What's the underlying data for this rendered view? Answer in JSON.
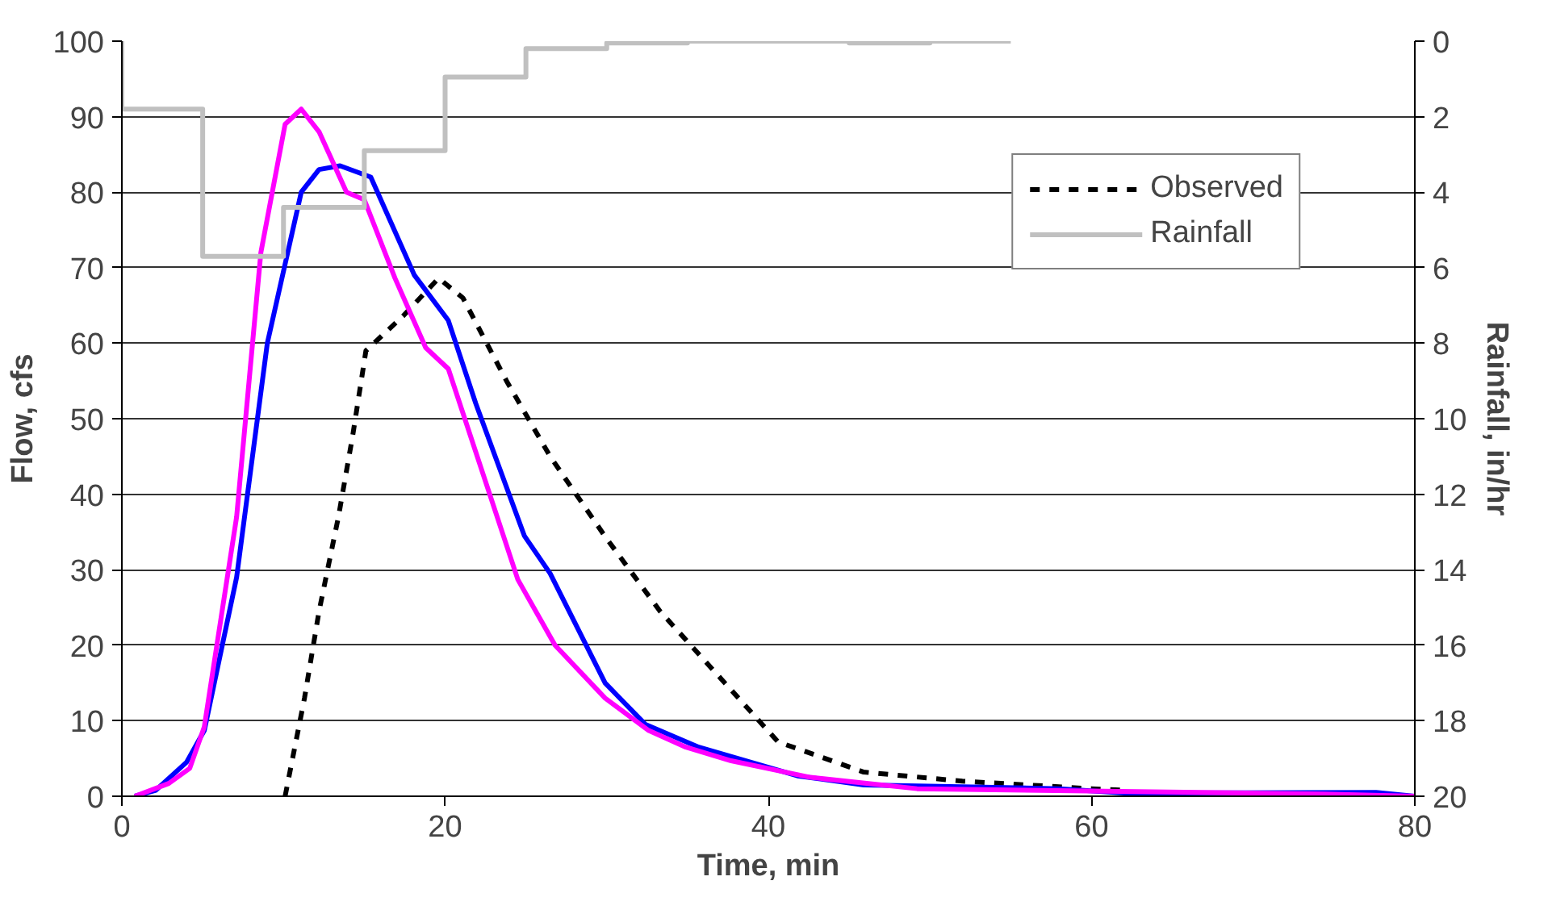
{
  "chart_data": {
    "type": "line",
    "xlabel": "Time, min",
    "ylabel": "Flow, cfs",
    "y2label": "Rainfall, in/hr",
    "xlim": [
      0,
      80
    ],
    "xticks": [
      0,
      20,
      40,
      60,
      80
    ],
    "ylim": [
      0,
      100
    ],
    "yticks": [
      0,
      10,
      20,
      30,
      40,
      50,
      60,
      70,
      80,
      90,
      100
    ],
    "y2lim": [
      20,
      0
    ],
    "y2ticks": [
      0,
      2,
      4,
      6,
      8,
      10,
      12,
      14,
      16,
      18,
      20
    ],
    "grid": "y",
    "legend": "top right",
    "marker": "none",
    "series": [
      {
        "name": "Observed",
        "color": "#000000",
        "line_style": "dashed",
        "x": [
          10.1,
          11.3,
          12.2,
          13.4,
          14.3,
          15.1,
          17.4,
          19.6,
          21.1,
          23.8,
          26.5,
          29.9,
          33.3,
          37.1,
          40.6,
          45.9,
          52,
          56,
          60,
          62
        ],
        "values": [
          0,
          13,
          24.5,
          37,
          48,
          59,
          63.6,
          68.6,
          66,
          55,
          45,
          34.4,
          24.5,
          15.5,
          7.2,
          3.2,
          2,
          1.5,
          1,
          0.8
        ]
      },
      {
        "color": "#0000ff",
        "line_style": "solid",
        "x": [
          0.8,
          2.1,
          4,
          5.1,
          7.1,
          9,
          11.1,
          12.2,
          13.5,
          15.4,
          18.1,
          20.2,
          21.9,
          24.9,
          26.5,
          29.9,
          32.4,
          35.7,
          41.8,
          45.9,
          58,
          62.2,
          77.6,
          80
        ],
        "values": [
          0,
          0.8,
          4.5,
          8.7,
          29,
          60,
          80,
          83,
          83.5,
          82,
          69,
          63,
          52,
          34.5,
          29.5,
          15,
          9.5,
          6.5,
          2.7,
          1.5,
          1,
          0.4,
          0.5,
          0
        ]
      },
      {
        "color": "#ff00ff",
        "line_style": "solid",
        "x": [
          0.8,
          2.9,
          4.2,
          5.1,
          7.1,
          8.6,
          10.1,
          11.1,
          12.2,
          13.9,
          15,
          16.9,
          18.8,
          20.2,
          24.5,
          26.8,
          29.9,
          32.6,
          34.9,
          37.7,
          42.6,
          49.2,
          74.4,
          80
        ],
        "values": [
          0,
          1.7,
          3.7,
          9.2,
          37,
          72,
          89,
          91,
          88,
          80,
          79,
          68.6,
          59.4,
          56.6,
          28.7,
          20,
          13,
          8.7,
          6.5,
          4.7,
          2.5,
          1,
          0.3,
          0
        ]
      },
      {
        "name": "Rainfall",
        "type": "step",
        "axis": "y2",
        "color": "#c0c0c0",
        "line_style": "solid",
        "x": [
          0,
          0,
          5,
          10,
          15,
          20,
          25,
          30,
          35,
          45,
          50,
          55
        ],
        "values": [
          0,
          1.8,
          5.7,
          4.4,
          2.9,
          0.95,
          0.2,
          0.05,
          0,
          0.05,
          0,
          0
        ]
      }
    ]
  }
}
